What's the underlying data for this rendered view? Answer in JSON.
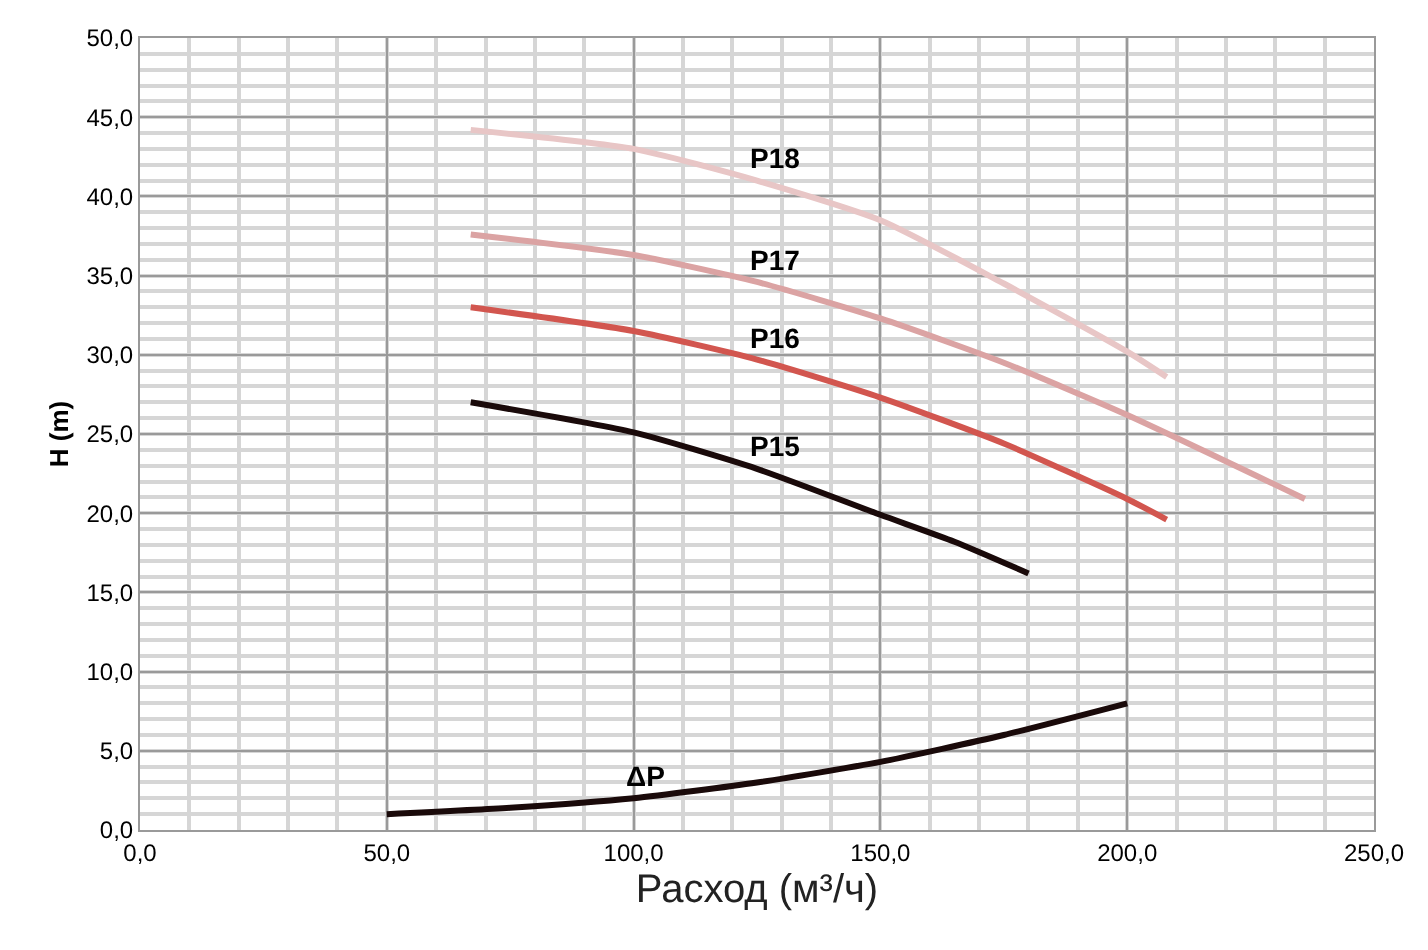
{
  "chart_data": {
    "type": "line",
    "xlabel": "Расход (м³/ч)",
    "ylabel": "H (m)",
    "xlim": [
      0,
      250
    ],
    "ylim": [
      0,
      50
    ],
    "xticks": [
      {
        "value": 0,
        "label": "0,0"
      },
      {
        "value": 50,
        "label": "50,0"
      },
      {
        "value": 100,
        "label": "100,0"
      },
      {
        "value": 150,
        "label": "150,0"
      },
      {
        "value": 200,
        "label": "200,0"
      },
      {
        "value": 250,
        "label": "250,0"
      }
    ],
    "yticks": [
      {
        "value": 0,
        "label": "0,0"
      },
      {
        "value": 5,
        "label": "5,0"
      },
      {
        "value": 10,
        "label": "10,0"
      },
      {
        "value": 15,
        "label": "15,0"
      },
      {
        "value": 20,
        "label": "20,0"
      },
      {
        "value": 25,
        "label": "25,0"
      },
      {
        "value": 30,
        "label": "30,0"
      },
      {
        "value": 35,
        "label": "35,0"
      },
      {
        "value": 40,
        "label": "40,0"
      },
      {
        "value": 45,
        "label": "45,0"
      },
      {
        "value": 50,
        "label": "50,0"
      }
    ],
    "grid": true,
    "legend": false,
    "marker": "none",
    "line_style": "solid",
    "series": [
      {
        "name": "P18",
        "color": "#e8c6c6",
        "x": [
          67,
          100,
          125,
          150,
          175,
          200,
          208
        ],
        "values": [
          44.2,
          43,
          41,
          38.5,
          34.5,
          30.2,
          28.6
        ]
      },
      {
        "name": "P17",
        "color": "#dba3a3",
        "x": [
          67,
          100,
          125,
          150,
          175,
          200,
          236
        ],
        "values": [
          37.6,
          36.3,
          34.6,
          32.3,
          29.5,
          26.2,
          20.9
        ]
      },
      {
        "name": "P16",
        "color": "#d2564f",
        "x": [
          67,
          100,
          125,
          150,
          175,
          200,
          208
        ],
        "values": [
          33,
          31.5,
          29.7,
          27.3,
          24.4,
          20.9,
          19.6
        ]
      },
      {
        "name": "P15",
        "color": "#1a0a0a",
        "x": [
          67,
          100,
          125,
          150,
          165,
          180
        ],
        "values": [
          27,
          25.1,
          22.8,
          19.9,
          18.2,
          16.2
        ]
      },
      {
        "name": "ΔP",
        "color": "#1a0a0a",
        "x": [
          50,
          75,
          100,
          125,
          150,
          175,
          200
        ],
        "values": [
          1,
          1.4,
          2,
          3,
          4.3,
          6,
          8
        ]
      }
    ]
  }
}
